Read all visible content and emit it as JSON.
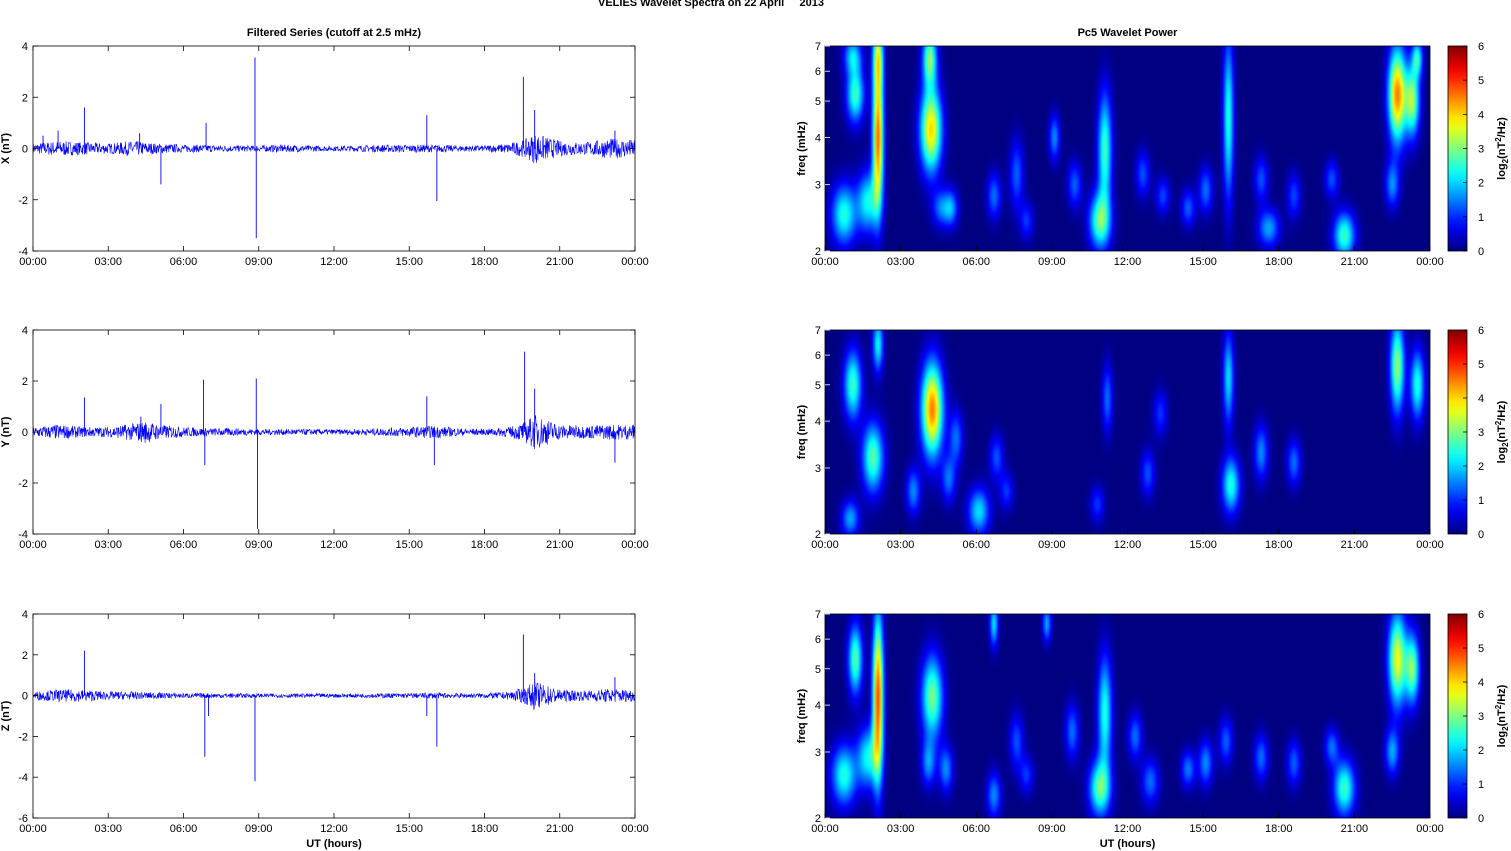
{
  "figure": {
    "suptitle": "VELIES Wavelet Spectra on 22 April     2013"
  },
  "chart_data": [
    {
      "type": "line",
      "panel": "filtered-x",
      "title": "Filtered Series (cutoff at 2.5 mHz)",
      "xlabel": "",
      "ylabel": "X (nT)",
      "xlim": [
        0,
        24
      ],
      "ylim": [
        -4,
        4
      ],
      "xticks": [
        "00:00",
        "03:00",
        "06:00",
        "09:00",
        "12:00",
        "15:00",
        "18:00",
        "21:00",
        "00:00"
      ],
      "yticks": [
        -4,
        -2,
        0,
        2,
        4
      ],
      "line_color": "#0000ff",
      "noise_envelope": {
        "x": [
          0,
          1,
          2,
          3,
          4,
          5,
          6,
          7,
          8,
          9,
          10,
          11,
          12,
          13,
          14,
          15,
          16,
          17,
          18,
          19,
          19.6,
          20,
          20.5,
          21,
          22,
          23,
          24
        ],
        "amp": [
          0.2,
          0.3,
          0.25,
          0.2,
          0.3,
          0.2,
          0.15,
          0.15,
          0.12,
          0.12,
          0.15,
          0.12,
          0.1,
          0.12,
          0.15,
          0.15,
          0.15,
          0.12,
          0.12,
          0.2,
          0.35,
          0.6,
          0.45,
          0.3,
          0.25,
          0.4,
          0.35
        ]
      },
      "spikes": {
        "x": [
          0.4,
          1.0,
          2.05,
          4.25,
          5.1,
          6.9,
          8.85,
          8.9,
          15.7,
          16.1,
          19.55,
          20.0,
          23.2
        ],
        "y": [
          0.5,
          0.7,
          1.6,
          0.6,
          -1.4,
          1.0,
          3.55,
          -3.5,
          1.3,
          -2.05,
          2.8,
          1.5,
          0.7
        ]
      },
      "grid": false
    },
    {
      "type": "line",
      "panel": "filtered-y",
      "title": "",
      "xlabel": "",
      "ylabel": "Y (nT)",
      "xlim": [
        0,
        24
      ],
      "ylim": [
        -4,
        4
      ],
      "xticks": [
        "00:00",
        "03:00",
        "06:00",
        "09:00",
        "12:00",
        "15:00",
        "18:00",
        "21:00",
        "00:00"
      ],
      "yticks": [
        -4,
        -2,
        0,
        2,
        4
      ],
      "line_color": "#0000ff",
      "noise_envelope": {
        "x": [
          0,
          1,
          2,
          3,
          4,
          4.5,
          5,
          6,
          7,
          8,
          9,
          10,
          11,
          12,
          13,
          14,
          15,
          16,
          17,
          18,
          19,
          19.6,
          20,
          20.5,
          21,
          22,
          23,
          24
        ],
        "amp": [
          0.2,
          0.3,
          0.2,
          0.2,
          0.35,
          0.45,
          0.3,
          0.2,
          0.15,
          0.15,
          0.12,
          0.12,
          0.12,
          0.1,
          0.12,
          0.15,
          0.2,
          0.25,
          0.15,
          0.12,
          0.2,
          0.4,
          0.7,
          0.5,
          0.3,
          0.25,
          0.3,
          0.3
        ]
      },
      "spikes": {
        "x": [
          2.05,
          4.3,
          5.1,
          6.8,
          6.85,
          8.9,
          8.95,
          15.7,
          16.0,
          19.6,
          20.0,
          23.2
        ],
        "y": [
          1.35,
          0.6,
          1.1,
          2.05,
          -1.3,
          2.1,
          -3.8,
          1.4,
          -1.3,
          3.15,
          1.7,
          -1.2
        ]
      },
      "grid": false
    },
    {
      "type": "line",
      "panel": "filtered-z",
      "title": "",
      "xlabel": "UT (hours)",
      "ylabel": "Z (nT)",
      "xlim": [
        0,
        24
      ],
      "ylim": [
        -6,
        4
      ],
      "xticks": [
        "00:00",
        "03:00",
        "06:00",
        "09:00",
        "12:00",
        "15:00",
        "18:00",
        "21:00",
        "00:00"
      ],
      "yticks": [
        -6,
        -4,
        -2,
        0,
        2,
        4
      ],
      "line_color": "#0000ff",
      "noise_envelope": {
        "x": [
          0,
          1,
          2,
          3,
          4,
          5,
          6,
          7,
          8,
          9,
          10,
          11,
          12,
          13,
          14,
          15,
          16,
          17,
          18,
          19,
          19.6,
          20,
          20.5,
          21,
          22,
          23,
          24
        ],
        "amp": [
          0.2,
          0.3,
          0.3,
          0.2,
          0.2,
          0.15,
          0.12,
          0.12,
          0.12,
          0.1,
          0.1,
          0.1,
          0.1,
          0.1,
          0.12,
          0.12,
          0.15,
          0.12,
          0.12,
          0.2,
          0.4,
          0.7,
          0.5,
          0.3,
          0.25,
          0.35,
          0.3
        ]
      },
      "spikes": {
        "x": [
          2.05,
          6.85,
          7.0,
          8.85,
          15.7,
          16.1,
          19.55,
          20.0,
          23.2
        ],
        "y": [
          2.2,
          -3.0,
          -1.0,
          -4.2,
          -1.0,
          -2.5,
          3.0,
          1.1,
          0.9
        ]
      },
      "grid": false
    },
    {
      "type": "heatmap",
      "panel": "wavelet-x",
      "title": "Pc5 Wavelet Power",
      "xlabel": "",
      "ylabel": "freq (mHz)",
      "xlim": [
        0,
        24
      ],
      "ylim": [
        2,
        7
      ],
      "yscale": "log",
      "xticks": [
        "00:00",
        "03:00",
        "06:00",
        "09:00",
        "12:00",
        "15:00",
        "18:00",
        "21:00",
        "00:00"
      ],
      "yticks": [
        2,
        3,
        4,
        5,
        6,
        7
      ],
      "colormap": "jet",
      "clim": [
        0,
        6
      ],
      "colorbar_label": "log2(nT2/Hz)",
      "colorbar_ticks": [
        0,
        1,
        2,
        3,
        4,
        5,
        6
      ],
      "blobs": [
        {
          "t": 0.75,
          "f": 2.5,
          "p": 2.8,
          "w": 0.35,
          "h": 0.13
        },
        {
          "t": 1.2,
          "f": 5.2,
          "p": 3.0,
          "w": 0.25,
          "h": 0.12
        },
        {
          "t": 1.1,
          "f": 6.6,
          "p": 2.2,
          "w": 0.25,
          "h": 0.08
        },
        {
          "t": 1.7,
          "f": 2.7,
          "p": 2.6,
          "w": 0.3,
          "h": 0.13
        },
        {
          "t": 2.1,
          "f": 4.0,
          "p": 5.4,
          "w": 0.15,
          "h": 0.3
        },
        {
          "t": 2.1,
          "f": 6.6,
          "p": 3.2,
          "w": 0.15,
          "h": 0.15
        },
        {
          "t": 4.2,
          "f": 4.2,
          "p": 4.6,
          "w": 0.3,
          "h": 0.18
        },
        {
          "t": 4.15,
          "f": 6.5,
          "p": 3.4,
          "w": 0.2,
          "h": 0.12
        },
        {
          "t": 4.6,
          "f": 2.6,
          "p": 1.6,
          "w": 0.25,
          "h": 0.08
        },
        {
          "t": 5.0,
          "f": 2.6,
          "p": 1.8,
          "w": 0.2,
          "h": 0.08
        },
        {
          "t": 6.7,
          "f": 2.8,
          "p": 1.6,
          "w": 0.2,
          "h": 0.1
        },
        {
          "t": 7.6,
          "f": 3.2,
          "p": 1.5,
          "w": 0.2,
          "h": 0.15
        },
        {
          "t": 8.0,
          "f": 2.4,
          "p": 1.2,
          "w": 0.2,
          "h": 0.08
        },
        {
          "t": 9.1,
          "f": 4.0,
          "p": 1.8,
          "w": 0.15,
          "h": 0.1
        },
        {
          "t": 9.9,
          "f": 3.0,
          "p": 1.5,
          "w": 0.2,
          "h": 0.1
        },
        {
          "t": 10.9,
          "f": 2.4,
          "p": 3.2,
          "w": 0.3,
          "h": 0.12
        },
        {
          "t": 11.1,
          "f": 3.7,
          "p": 3.0,
          "w": 0.2,
          "h": 0.25
        },
        {
          "t": 12.6,
          "f": 3.2,
          "p": 1.4,
          "w": 0.2,
          "h": 0.1
        },
        {
          "t": 13.4,
          "f": 2.8,
          "p": 1.3,
          "w": 0.2,
          "h": 0.08
        },
        {
          "t": 14.4,
          "f": 2.6,
          "p": 1.5,
          "w": 0.2,
          "h": 0.08
        },
        {
          "t": 15.1,
          "f": 2.9,
          "p": 1.6,
          "w": 0.2,
          "h": 0.1
        },
        {
          "t": 16.0,
          "f": 4.5,
          "p": 2.8,
          "w": 0.15,
          "h": 0.35
        },
        {
          "t": 17.3,
          "f": 3.1,
          "p": 1.4,
          "w": 0.2,
          "h": 0.1
        },
        {
          "t": 17.6,
          "f": 2.3,
          "p": 2.0,
          "w": 0.3,
          "h": 0.08
        },
        {
          "t": 18.6,
          "f": 2.8,
          "p": 1.3,
          "w": 0.2,
          "h": 0.1
        },
        {
          "t": 20.1,
          "f": 3.1,
          "p": 1.4,
          "w": 0.2,
          "h": 0.08
        },
        {
          "t": 20.6,
          "f": 2.2,
          "p": 3.0,
          "w": 0.3,
          "h": 0.1
        },
        {
          "t": 22.7,
          "f": 5.2,
          "p": 5.2,
          "w": 0.25,
          "h": 0.2
        },
        {
          "t": 22.5,
          "f": 3.0,
          "p": 1.8,
          "w": 0.2,
          "h": 0.1
        },
        {
          "t": 23.3,
          "f": 5.0,
          "p": 3.6,
          "w": 0.2,
          "h": 0.15
        },
        {
          "t": 23.5,
          "f": 6.5,
          "p": 2.6,
          "w": 0.15,
          "h": 0.08
        }
      ]
    },
    {
      "type": "heatmap",
      "panel": "wavelet-y",
      "title": "",
      "xlabel": "",
      "ylabel": "freq (mHz)",
      "xlim": [
        0,
        24
      ],
      "ylim": [
        2,
        7
      ],
      "yscale": "log",
      "xticks": [
        "00:00",
        "03:00",
        "06:00",
        "09:00",
        "12:00",
        "15:00",
        "18:00",
        "21:00",
        "00:00"
      ],
      "yticks": [
        2,
        3,
        4,
        5,
        6,
        7
      ],
      "colormap": "jet",
      "clim": [
        0,
        6
      ],
      "colorbar_label": "log2(nT2/Hz)",
      "colorbar_ticks": [
        0,
        1,
        2,
        3,
        4,
        5,
        6
      ],
      "blobs": [
        {
          "t": 1.1,
          "f": 5.0,
          "p": 3.0,
          "w": 0.25,
          "h": 0.15
        },
        {
          "t": 1.0,
          "f": 2.2,
          "p": 2.0,
          "w": 0.25,
          "h": 0.08
        },
        {
          "t": 1.9,
          "f": 3.2,
          "p": 3.2,
          "w": 0.3,
          "h": 0.15
        },
        {
          "t": 2.1,
          "f": 6.4,
          "p": 2.6,
          "w": 0.15,
          "h": 0.12
        },
        {
          "t": 4.25,
          "f": 4.3,
          "p": 5.2,
          "w": 0.3,
          "h": 0.2
        },
        {
          "t": 3.5,
          "f": 2.6,
          "p": 1.8,
          "w": 0.2,
          "h": 0.1
        },
        {
          "t": 4.9,
          "f": 2.8,
          "p": 1.6,
          "w": 0.2,
          "h": 0.1
        },
        {
          "t": 5.2,
          "f": 3.6,
          "p": 1.6,
          "w": 0.2,
          "h": 0.12
        },
        {
          "t": 6.1,
          "f": 2.3,
          "p": 2.4,
          "w": 0.3,
          "h": 0.1
        },
        {
          "t": 6.8,
          "f": 3.2,
          "p": 1.4,
          "w": 0.2,
          "h": 0.1
        },
        {
          "t": 7.2,
          "f": 2.6,
          "p": 1.2,
          "w": 0.2,
          "h": 0.08
        },
        {
          "t": 10.8,
          "f": 2.4,
          "p": 1.2,
          "w": 0.2,
          "h": 0.08
        },
        {
          "t": 11.2,
          "f": 4.6,
          "p": 1.6,
          "w": 0.15,
          "h": 0.15
        },
        {
          "t": 12.8,
          "f": 2.9,
          "p": 1.4,
          "w": 0.2,
          "h": 0.1
        },
        {
          "t": 13.3,
          "f": 4.2,
          "p": 1.2,
          "w": 0.2,
          "h": 0.1
        },
        {
          "t": 16.1,
          "f": 2.7,
          "p": 2.8,
          "w": 0.25,
          "h": 0.12
        },
        {
          "t": 16.0,
          "f": 5.2,
          "p": 2.4,
          "w": 0.15,
          "h": 0.2
        },
        {
          "t": 17.3,
          "f": 3.3,
          "p": 1.8,
          "w": 0.2,
          "h": 0.12
        },
        {
          "t": 18.6,
          "f": 3.1,
          "p": 1.6,
          "w": 0.2,
          "h": 0.1
        },
        {
          "t": 22.7,
          "f": 5.6,
          "p": 3.6,
          "w": 0.2,
          "h": 0.2
        },
        {
          "t": 23.5,
          "f": 5.0,
          "p": 2.8,
          "w": 0.2,
          "h": 0.15
        }
      ]
    },
    {
      "type": "heatmap",
      "panel": "wavelet-z",
      "title": "",
      "xlabel": "UT (hours)",
      "ylabel": "freq (mHz)",
      "xlim": [
        0,
        24
      ],
      "ylim": [
        2,
        7
      ],
      "yscale": "log",
      "xticks": [
        "00:00",
        "03:00",
        "06:00",
        "09:00",
        "12:00",
        "15:00",
        "18:00",
        "21:00",
        "00:00"
      ],
      "yticks": [
        2,
        3,
        4,
        5,
        6,
        7
      ],
      "colormap": "jet",
      "clim": [
        0,
        6
      ],
      "colorbar_label": "log2(nT2/Hz)",
      "colorbar_ticks": [
        0,
        1,
        2,
        3,
        4,
        5,
        6
      ],
      "blobs": [
        {
          "t": 0.75,
          "f": 2.6,
          "p": 2.8,
          "w": 0.35,
          "h": 0.13
        },
        {
          "t": 1.2,
          "f": 5.3,
          "p": 3.2,
          "w": 0.2,
          "h": 0.15
        },
        {
          "t": 1.7,
          "f": 2.9,
          "p": 2.6,
          "w": 0.3,
          "h": 0.13
        },
        {
          "t": 2.1,
          "f": 4.2,
          "p": 5.6,
          "w": 0.15,
          "h": 0.35
        },
        {
          "t": 4.25,
          "f": 4.2,
          "p": 3.4,
          "w": 0.3,
          "h": 0.18
        },
        {
          "t": 4.1,
          "f": 2.8,
          "p": 1.8,
          "w": 0.2,
          "h": 0.1
        },
        {
          "t": 4.8,
          "f": 2.7,
          "p": 1.8,
          "w": 0.2,
          "h": 0.1
        },
        {
          "t": 6.7,
          "f": 2.3,
          "p": 1.8,
          "w": 0.2,
          "h": 0.1
        },
        {
          "t": 6.7,
          "f": 6.6,
          "p": 2.4,
          "w": 0.12,
          "h": 0.1
        },
        {
          "t": 7.6,
          "f": 3.2,
          "p": 1.4,
          "w": 0.2,
          "h": 0.12
        },
        {
          "t": 8.0,
          "f": 2.6,
          "p": 1.2,
          "w": 0.2,
          "h": 0.08
        },
        {
          "t": 8.8,
          "f": 6.6,
          "p": 2.0,
          "w": 0.12,
          "h": 0.08
        },
        {
          "t": 9.8,
          "f": 3.4,
          "p": 1.6,
          "w": 0.2,
          "h": 0.12
        },
        {
          "t": 10.9,
          "f": 2.4,
          "p": 3.2,
          "w": 0.3,
          "h": 0.12
        },
        {
          "t": 11.1,
          "f": 3.8,
          "p": 2.8,
          "w": 0.2,
          "h": 0.25
        },
        {
          "t": 12.3,
          "f": 3.3,
          "p": 1.6,
          "w": 0.2,
          "h": 0.1
        },
        {
          "t": 12.9,
          "f": 2.5,
          "p": 1.6,
          "w": 0.25,
          "h": 0.1
        },
        {
          "t": 14.4,
          "f": 2.7,
          "p": 1.7,
          "w": 0.2,
          "h": 0.08
        },
        {
          "t": 15.1,
          "f": 2.8,
          "p": 1.8,
          "w": 0.2,
          "h": 0.1
        },
        {
          "t": 15.9,
          "f": 3.2,
          "p": 1.5,
          "w": 0.2,
          "h": 0.1
        },
        {
          "t": 17.3,
          "f": 2.9,
          "p": 1.6,
          "w": 0.2,
          "h": 0.1
        },
        {
          "t": 18.6,
          "f": 2.8,
          "p": 1.5,
          "w": 0.2,
          "h": 0.1
        },
        {
          "t": 20.6,
          "f": 2.4,
          "p": 3.0,
          "w": 0.3,
          "h": 0.12
        },
        {
          "t": 20.1,
          "f": 3.1,
          "p": 1.6,
          "w": 0.2,
          "h": 0.08
        },
        {
          "t": 22.7,
          "f": 5.3,
          "p": 4.2,
          "w": 0.25,
          "h": 0.2
        },
        {
          "t": 22.5,
          "f": 3.0,
          "p": 2.0,
          "w": 0.2,
          "h": 0.1
        },
        {
          "t": 23.3,
          "f": 5.0,
          "p": 3.4,
          "w": 0.2,
          "h": 0.15
        }
      ]
    }
  ]
}
